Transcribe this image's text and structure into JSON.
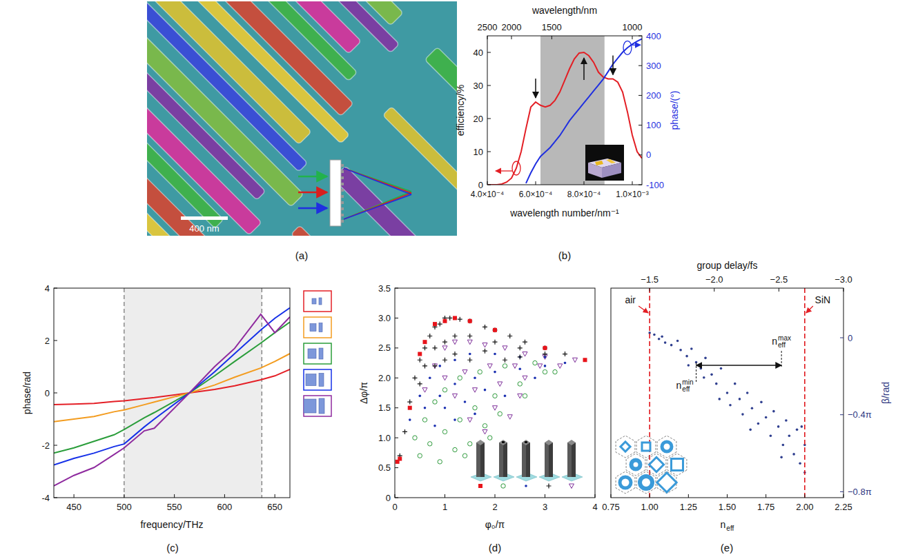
{
  "image_panel": {
    "panel": "(a)",
    "scale_bar": "400 nm"
  },
  "chart_data": [
    {
      "panel": "(b)",
      "type": "line",
      "x_label": "wavelength number/nm⁻¹",
      "x2_label": "wavelength/nm",
      "y_label": "efficiency/%",
      "y2_label": "phase/(°)",
      "x": [
        0.0004,
        0.00042,
        0.00044,
        0.00046,
        0.00048,
        0.0005,
        0.00052,
        0.00054,
        0.00056,
        0.00058,
        0.0006,
        0.00062,
        0.00064,
        0.00066,
        0.00068,
        0.0007,
        0.00072,
        0.00074,
        0.00076,
        0.00078,
        0.0008,
        0.00082,
        0.00084,
        0.00086,
        0.00088,
        0.0009,
        0.00092,
        0.00094,
        0.00096,
        0.00098,
        0.001,
        0.00102,
        0.00104
      ],
      "xlim": [
        0.0004,
        0.00104
      ],
      "xticks": [
        {
          "value": 0.0004,
          "label": "4.0×10⁻⁴"
        },
        {
          "value": 0.0006,
          "label": "6.0×10⁻⁴"
        },
        {
          "value": 0.0008,
          "label": "8.0×10⁻⁴"
        },
        {
          "value": 0.001,
          "label": "1.0×10⁻³"
        }
      ],
      "x2ticks": [
        {
          "value": 0.0004,
          "label": "2500"
        },
        {
          "value": 0.0005,
          "label": "2000"
        },
        {
          "value": 0.00066667,
          "label": "1500"
        },
        {
          "value": 0.001,
          "label": "1000"
        }
      ],
      "ylim": [
        0,
        45
      ],
      "yticks": [
        0,
        10,
        20,
        30,
        40
      ],
      "y2lim": [
        -100,
        400
      ],
      "y2ticks": [
        -100,
        0,
        100,
        200,
        300,
        400
      ],
      "shaded_band": [
        0.00062,
        0.000885
      ],
      "arrows": [
        {
          "x": 0.0006,
          "y": 25,
          "direction": "down"
        },
        {
          "x": 0.0008,
          "y": 40,
          "direction": "up"
        },
        {
          "x": 0.00092,
          "y": 32,
          "direction": "down"
        }
      ],
      "series": [
        {
          "color": "#e31e24",
          "values": [
            0,
            0,
            0,
            0.2,
            0.8,
            2,
            5,
            10,
            17,
            23.5,
            25,
            24,
            23.5,
            24,
            25.5,
            28,
            31.5,
            35,
            38,
            39.8,
            40,
            39,
            37,
            34,
            32.5,
            32,
            32,
            31,
            28,
            22,
            15,
            10,
            8
          ]
        },
        {
          "color": "#1f2fe0",
          "axis": "y2",
          "values": [
            null,
            null,
            null,
            null,
            null,
            null,
            null,
            null,
            -95,
            -60,
            -30,
            -5,
            10,
            25,
            45,
            65,
            90,
            115,
            135,
            155,
            175,
            195,
            215,
            235,
            255,
            280,
            305,
            325,
            345,
            360,
            372,
            382,
            390
          ]
        }
      ]
    },
    {
      "panel": "(c)",
      "type": "line",
      "x_label": "frequency/THz",
      "y_label": "phase/rad",
      "x": [
        430,
        450,
        470,
        490,
        500,
        520,
        530,
        565,
        590,
        610,
        636,
        650,
        665
      ],
      "xlim": [
        430,
        665
      ],
      "xticks": [
        450,
        500,
        550,
        600,
        650
      ],
      "ylim": [
        -4,
        4
      ],
      "yticks": [
        -4,
        -2,
        0,
        2,
        4
      ],
      "shaded_band": [
        500,
        637
      ],
      "legend": "right",
      "series": [
        {
          "color": "#e41f26",
          "values": [
            -0.45,
            -0.43,
            -0.4,
            -0.33,
            -0.3,
            -0.22,
            -0.18,
            0,
            0.13,
            0.27,
            0.5,
            0.65,
            0.9
          ]
        },
        {
          "color": "#f39c1f",
          "values": [
            -1.1,
            -1.0,
            -0.9,
            -0.72,
            -0.65,
            -0.45,
            -0.35,
            0,
            0.3,
            0.6,
            0.95,
            1.2,
            1.5
          ]
        },
        {
          "color": "#2a9d3a",
          "values": [
            -2.3,
            -2.1,
            -1.85,
            -1.6,
            -1.4,
            -0.95,
            -0.75,
            0,
            0.65,
            1.2,
            1.9,
            2.3,
            2.7
          ]
        },
        {
          "color": "#1530e8",
          "values": [
            -2.75,
            -2.5,
            -2.3,
            -2.05,
            -1.95,
            -1.3,
            -1.0,
            0,
            0.8,
            1.5,
            2.4,
            2.85,
            3.25
          ]
        },
        {
          "color": "#8e2a9e",
          "values": [
            -3.55,
            -3.15,
            -2.85,
            -2.35,
            -2.1,
            -1.45,
            -1.35,
            0,
            1.0,
            1.7,
            3.0,
            2.3,
            2.9
          ]
        }
      ]
    },
    {
      "panel": "(d)",
      "type": "scatter",
      "x_label": "φ₀/π",
      "y_label": "Δφ/π",
      "xlim": [
        0,
        4
      ],
      "xticks": [
        0,
        1,
        2,
        3,
        4
      ],
      "ylim": [
        0,
        3.5
      ],
      "yticks": [
        0,
        0.5,
        {
          "value": 1,
          "label": "1.0"
        },
        1.5,
        {
          "value": 2,
          "label": "2.0"
        },
        2.5,
        {
          "value": 3,
          "label": "3.0"
        },
        3.5
      ],
      "series": [
        {
          "color": "#e8141b",
          "marker": "square",
          "x": [
            0.05,
            0.1,
            0.3,
            0.5,
            0.6,
            0.8,
            1.0,
            1.2,
            1.5,
            2.0,
            3.0,
            3.8
          ],
          "values": [
            0.6,
            0.65,
            1.5,
            2.4,
            2.6,
            2.9,
            2.95,
            3.0,
            2.95,
            2.8,
            2.5,
            2.3
          ]
        },
        {
          "color": "#2e9a3c",
          "marker": "circle",
          "x": [
            0.4,
            0.6,
            0.8,
            1.0,
            1.3,
            1.7,
            2.2,
            2.8,
            0.7,
            1.0,
            1.3,
            1.6,
            2.0,
            2.5,
            3.0,
            1.2,
            1.5,
            1.8,
            2.1,
            2.6,
            3.2,
            0.5,
            0.9,
            1.4,
            1.9
          ],
          "values": [
            1.0,
            1.3,
            1.6,
            1.8,
            2.0,
            2.1,
            2.2,
            2.25,
            0.9,
            1.1,
            1.3,
            1.5,
            1.7,
            1.9,
            2.1,
            0.8,
            0.9,
            1.2,
            1.4,
            1.7,
            2.1,
            0.7,
            0.6,
            0.7,
            1.0
          ]
        },
        {
          "color": "#1a2fb0",
          "marker": "dot",
          "x": [
            0.3,
            0.5,
            0.7,
            0.9,
            1.2,
            1.5,
            2.0,
            2.5,
            3.0,
            0.6,
            0.9,
            1.2,
            1.6,
            2.0,
            2.5,
            3.0,
            1.0,
            1.4,
            1.8,
            0.8,
            1.2,
            1.6,
            2.2,
            2.8,
            3.4
          ],
          "values": [
            1.3,
            1.7,
            2.0,
            2.2,
            2.3,
            2.4,
            2.4,
            2.35,
            2.35,
            1.5,
            1.7,
            1.9,
            2.0,
            2.1,
            2.15,
            2.2,
            1.5,
            1.6,
            1.8,
            1.2,
            1.3,
            1.4,
            1.7,
            2.0,
            2.25
          ]
        },
        {
          "color": "#111111",
          "marker": "plus",
          "x": [
            0.1,
            0.2,
            0.3,
            0.4,
            0.5,
            0.6,
            0.7,
            0.8,
            0.9,
            1.0,
            1.1,
            1.3,
            1.5,
            1.8,
            2.0,
            2.3,
            2.6,
            3.0,
            3.4,
            0.6,
            0.8,
            1.0,
            1.2,
            1.5,
            2.0,
            2.5,
            3.0,
            0.5,
            0.8,
            1.2,
            1.8,
            2.5,
            1.0,
            1.5,
            2.2
          ],
          "values": [
            0.7,
            1.1,
            1.6,
            2.0,
            2.3,
            2.5,
            2.7,
            2.85,
            2.9,
            3.0,
            3.0,
            2.98,
            2.95,
            2.85,
            2.8,
            2.7,
            2.6,
            2.5,
            2.4,
            2.2,
            2.5,
            2.6,
            2.7,
            2.7,
            2.6,
            2.5,
            2.4,
            1.9,
            2.2,
            2.4,
            2.45,
            2.35,
            2.3,
            2.3,
            2.3
          ]
        },
        {
          "color": "#7e2f9a",
          "marker": "triangle",
          "x": [
            0.6,
            0.8,
            1.0,
            1.2,
            1.5,
            1.8,
            2.2,
            2.6,
            3.0,
            1.0,
            1.4,
            1.9,
            2.4,
            2.9,
            1.2,
            1.6,
            2.1,
            2.6,
            3.3,
            1.5,
            2.0,
            2.5,
            3.6,
            1.8,
            2.3
          ],
          "values": [
            1.8,
            2.2,
            2.5,
            2.6,
            2.6,
            2.55,
            2.5,
            2.4,
            2.35,
            2.0,
            2.1,
            2.2,
            2.2,
            2.2,
            1.7,
            1.8,
            1.9,
            2.0,
            2.2,
            1.3,
            1.5,
            1.7,
            2.3,
            1.1,
            1.35
          ]
        }
      ]
    },
    {
      "panel": "(e)",
      "type": "scatter",
      "x_label": {
        "text": "n",
        "sub": "eff"
      },
      "x2_label": "group delay/fs",
      "y_label": "β/rad",
      "xlim": [
        0.75,
        2.25
      ],
      "xticks": [
        0.75,
        {
          "value": 1,
          "label": "1.00"
        },
        1.25,
        {
          "value": 1.5,
          "label": "1.50"
        },
        1.75,
        {
          "value": 2,
          "label": "2.00"
        },
        2.25
      ],
      "x2lim": [
        -1.2,
        -3.0
      ],
      "x2ticks": [
        {
          "value": -1.5,
          "label": "−1.5"
        },
        {
          "value": -2.0,
          "label": "−2.0"
        },
        {
          "value": -2.5,
          "label": "−2.5"
        },
        {
          "value": -3.0,
          "label": "−3.0"
        }
      ],
      "ylim": [
        -2.61,
        0.81
      ],
      "yticks": [
        0,
        {
          "value": -1.2566,
          "label": "−0.4π"
        },
        {
          "value": -2.5133,
          "label": "−0.8π"
        }
      ],
      "reference_lines": [
        {
          "x": 1,
          "label": "air"
        },
        {
          "x": 2,
          "label": "SiN"
        }
      ],
      "range_arrow": {
        "y": -0.45,
        "from": {
          "x": 1.3,
          "text": "n",
          "sub": "eff",
          "sup": "min"
        },
        "to": {
          "x": 1.85,
          "text": "n",
          "sub": "eff",
          "sup": "max"
        }
      },
      "series": [
        {
          "color": "#2f3f8f",
          "marker": "dot",
          "x": [
            1.0,
            1.03,
            1.06,
            1.08,
            1.1,
            1.14,
            1.18,
            1.2,
            1.24,
            1.27,
            1.3,
            1.33,
            1.36,
            1.4,
            1.43,
            1.46,
            1.5,
            1.52,
            1.55,
            1.58,
            1.6,
            1.63,
            1.66,
            1.7,
            1.72,
            1.75,
            1.78,
            1.8,
            1.83,
            1.86,
            1.88,
            1.9,
            1.93,
            1.95,
            1.97,
            2.0,
            2.0,
            1.98,
            1.45,
            1.35,
            1.65,
            1.25,
            1.85
          ],
          "values": [
            0.08,
            0.05,
            -0.02,
            0.02,
            -0.08,
            -0.12,
            -0.05,
            -0.2,
            -0.3,
            -0.18,
            -0.4,
            -0.5,
            -0.33,
            -0.6,
            -0.75,
            -0.5,
            -0.9,
            -1.1,
            -0.75,
            -1.0,
            -1.25,
            -0.9,
            -1.15,
            -1.4,
            -1.05,
            -1.3,
            -1.6,
            -1.2,
            -1.45,
            -1.75,
            -1.35,
            -1.6,
            -1.9,
            -1.5,
            -2.05,
            -1.75,
            -2.2,
            -1.45,
            -1.0,
            -0.65,
            -1.5,
            -0.45,
            -1.95
          ]
        }
      ]
    }
  ]
}
